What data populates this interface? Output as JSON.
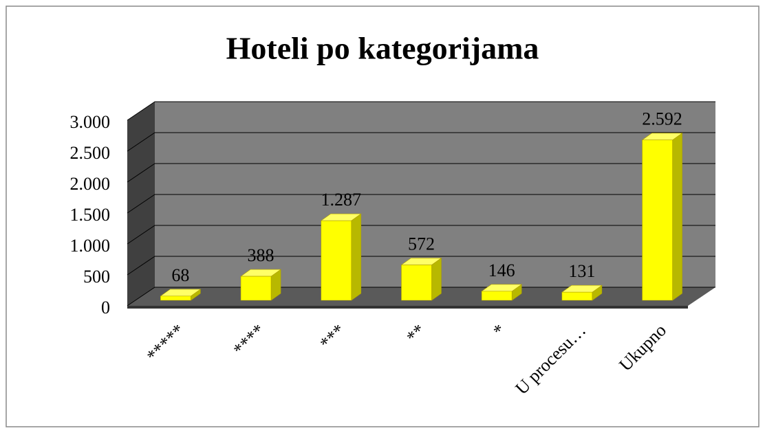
{
  "chart_data": {
    "type": "bar3d",
    "title": "Hoteli po kategorijama",
    "categories": [
      "*****",
      "****",
      "***",
      "**",
      "*",
      "U procesu…",
      "Ukupno"
    ],
    "values": [
      68,
      388,
      1287,
      572,
      146,
      131,
      2592
    ],
    "value_labels": [
      "68",
      "388",
      "1.287",
      "572",
      "146",
      "131",
      "2.592"
    ],
    "color": "#ffff00",
    "ylim": [
      0,
      3000
    ],
    "yticks": [
      0,
      500,
      {
        "value": 1000,
        "label": "1.000"
      },
      {
        "value": 1500,
        "label": "1.500"
      },
      {
        "value": 2000,
        "label": "2.000"
      },
      {
        "value": 2500,
        "label": "2.500"
      },
      {
        "value": 3000,
        "label": "3.000"
      }
    ],
    "grid": true
  }
}
